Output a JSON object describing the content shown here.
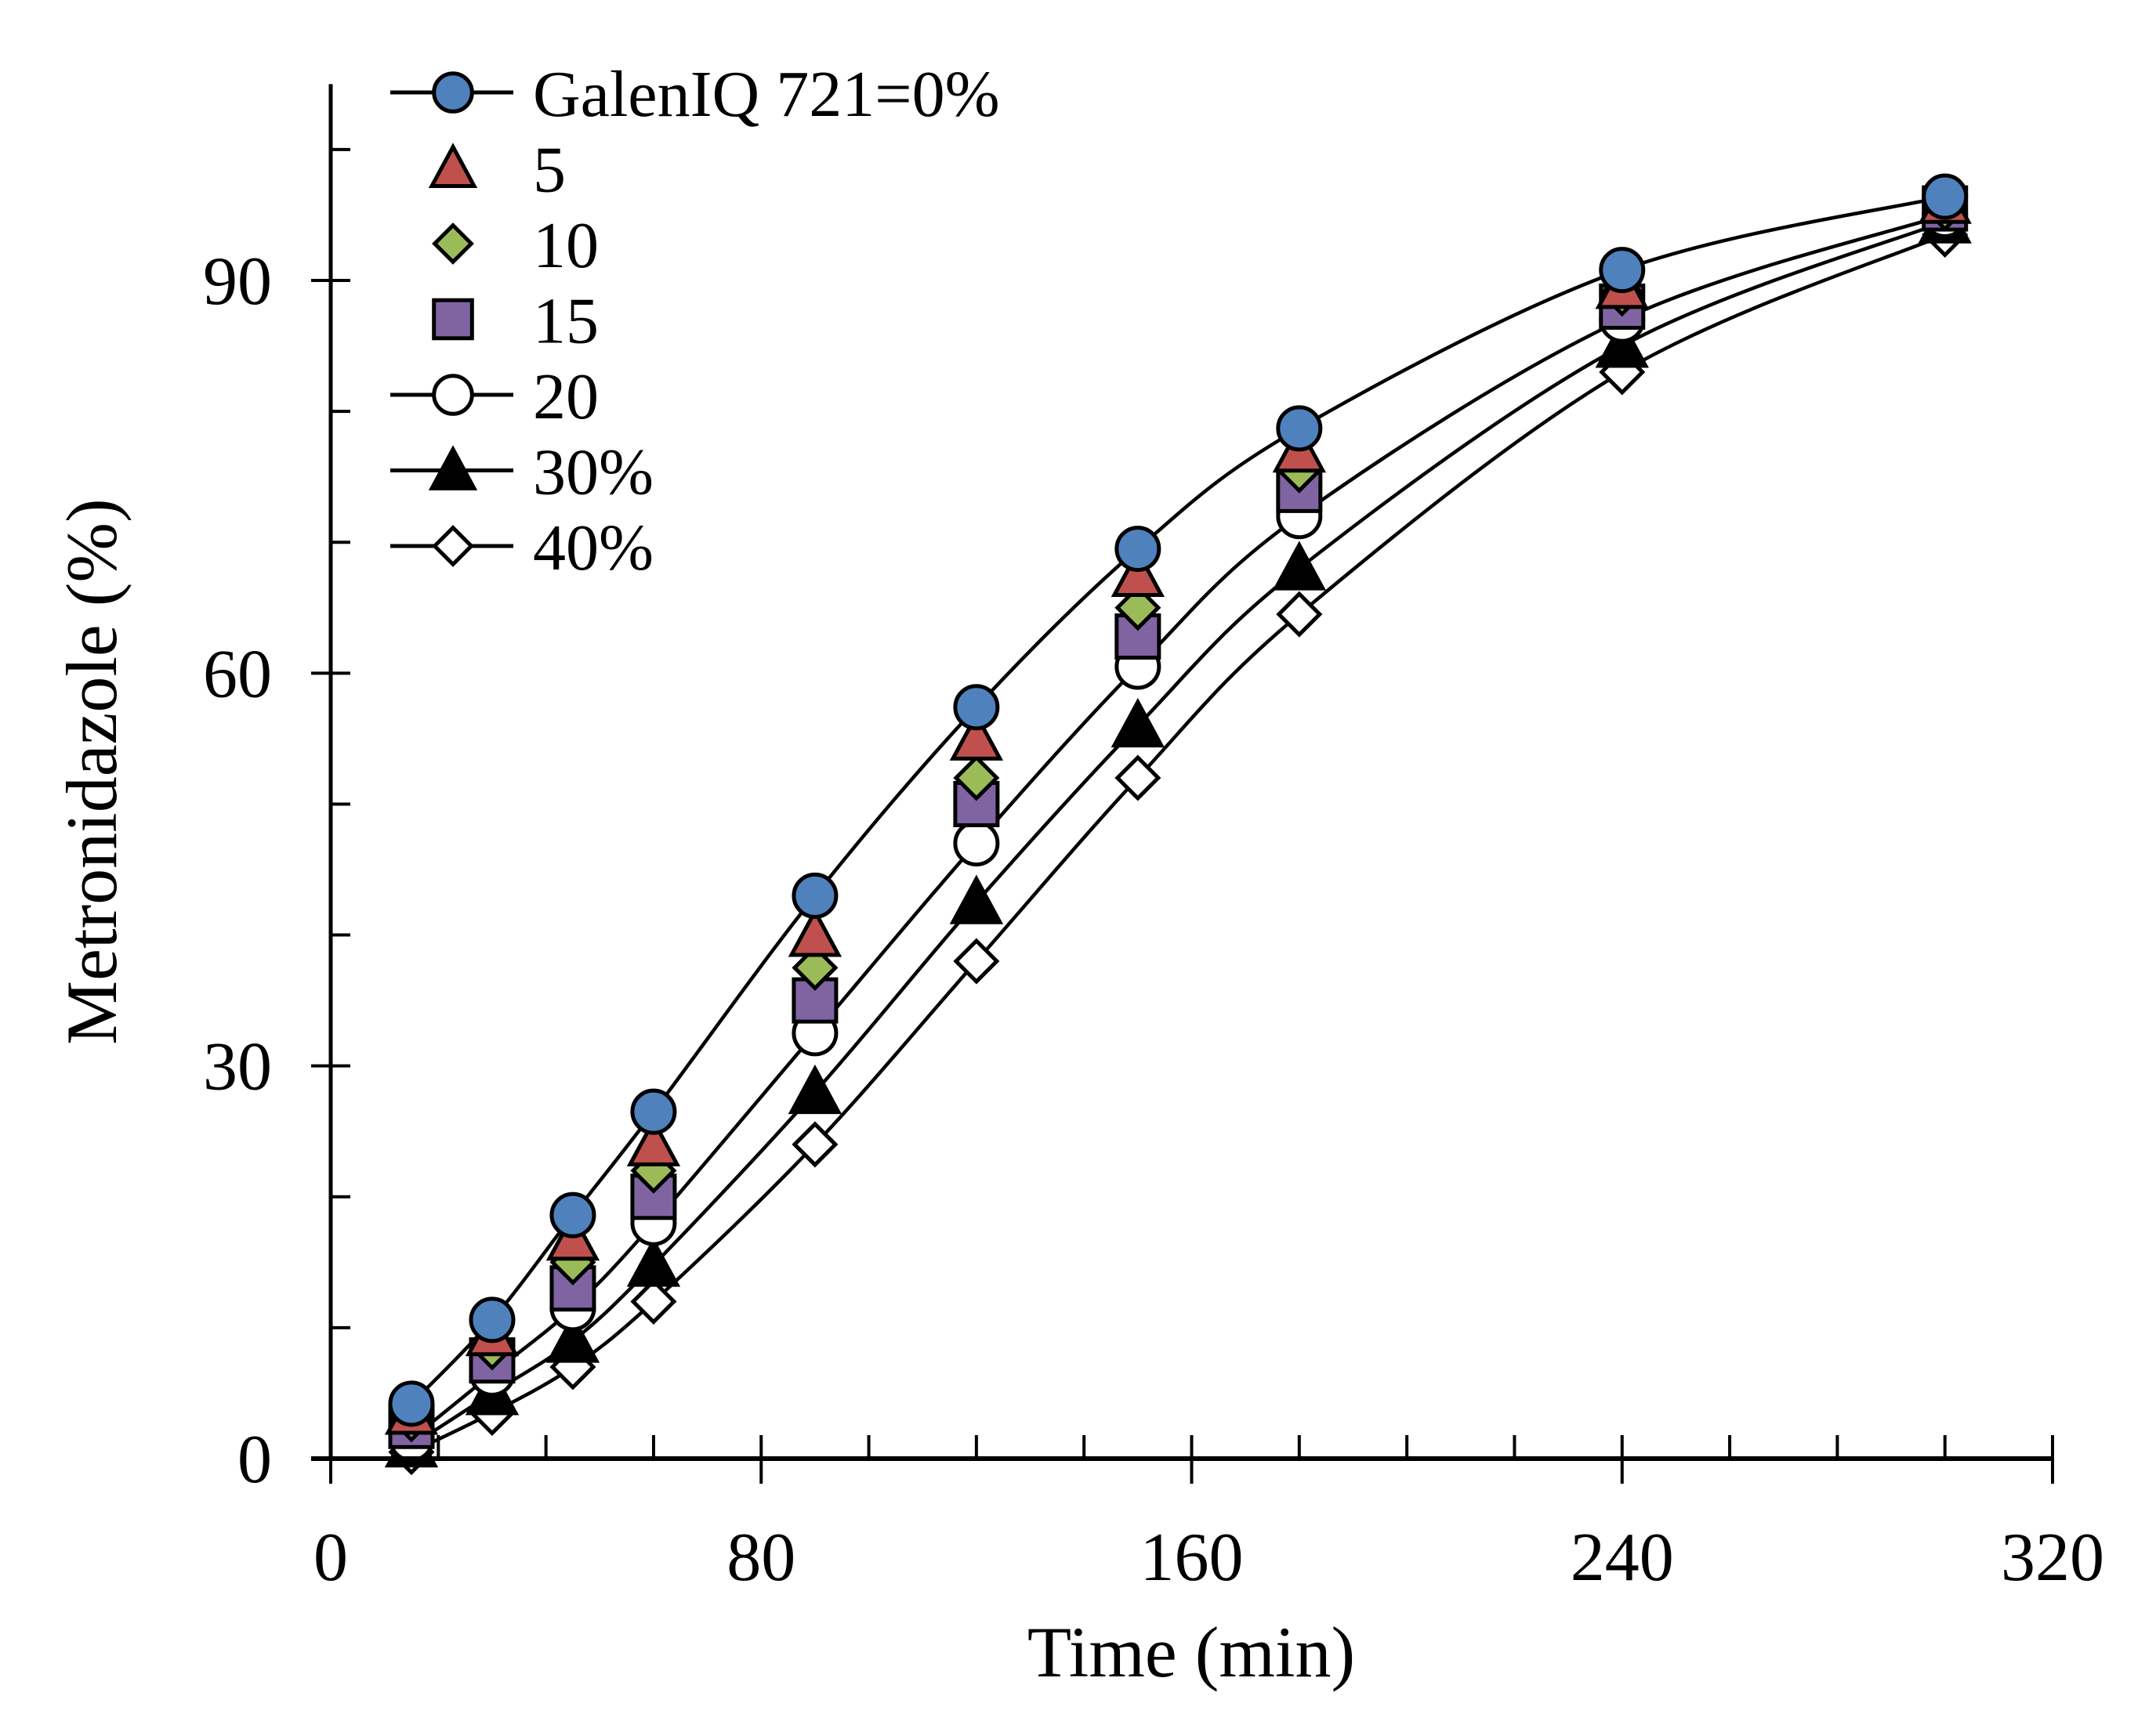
{
  "chart_data": {
    "type": "line",
    "title": "",
    "xlabel": "Time  (min)",
    "ylabel": "Metronidazole  (%)",
    "xlim": [
      0,
      320
    ],
    "ylim": [
      0,
      105
    ],
    "x_ticks": [
      0,
      80,
      160,
      240,
      320
    ],
    "x_tick_labels": [
      "0",
      "80",
      "160",
      "240",
      "320"
    ],
    "x_minor_step": 20,
    "y_ticks": [
      0,
      30,
      60,
      90
    ],
    "y_tick_labels": [
      "0",
      "30",
      "60",
      "90"
    ],
    "y_minor_step": 10,
    "grid": false,
    "legend_position": "top-left",
    "x": [
      15,
      30,
      45,
      60,
      90,
      120,
      150,
      180,
      240,
      300
    ],
    "series": [
      {
        "name": "GalenIQ 721=0%",
        "marker": "circle",
        "fill": "#4f81bd",
        "line": true,
        "values": [
          4.2,
          10.6,
          18.6,
          26.5,
          43.0,
          57.4,
          69.5,
          78.7,
          90.8,
          96.4
        ]
      },
      {
        "name": "5",
        "marker": "triangle",
        "fill": "#c0504d",
        "line": false,
        "values": [
          3.5,
          9.5,
          16.8,
          24.0,
          40.0,
          55.0,
          67.5,
          77.0,
          89.5,
          96.0
        ]
      },
      {
        "name": "10",
        "marker": "diamond",
        "fill": "#9bbb59",
        "line": false,
        "values": [
          3.0,
          8.5,
          15.0,
          22.0,
          37.5,
          52.0,
          65.0,
          75.5,
          89.0,
          95.5
        ]
      },
      {
        "name": "15",
        "marker": "square",
        "fill": "#8064a2",
        "line": false,
        "values": [
          2.5,
          7.5,
          13.0,
          20.0,
          35.0,
          50.0,
          62.8,
          74.0,
          88.0,
          95.5
        ]
      },
      {
        "name": "20",
        "marker": "circle",
        "fill": "#ffffff",
        "line": true,
        "values": [
          1.5,
          6.5,
          11.5,
          18.0,
          32.5,
          47.0,
          60.5,
          72.0,
          87.0,
          95.0
        ]
      },
      {
        "name": "30%",
        "marker": "triangle",
        "fill": "#000000",
        "line": true,
        "values": [
          1.0,
          5.0,
          9.0,
          14.8,
          28.0,
          42.5,
          56.0,
          68.0,
          85.0,
          94.5
        ]
      },
      {
        "name": "40%",
        "marker": "diamond",
        "fill": "#ffffff",
        "line": true,
        "values": [
          0.5,
          3.5,
          7.0,
          12.0,
          24.0,
          38.0,
          52.0,
          64.5,
          83.0,
          93.5
        ]
      }
    ]
  }
}
